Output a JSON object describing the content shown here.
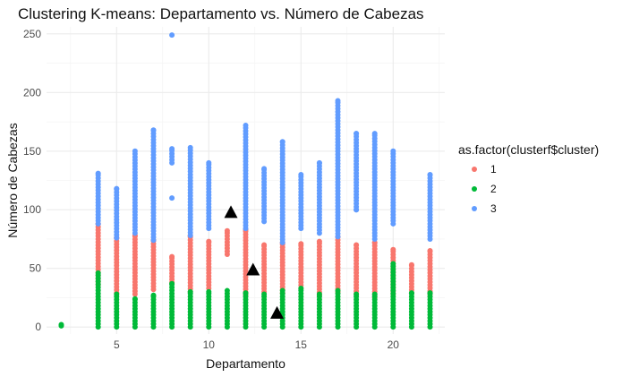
{
  "chart_data": {
    "type": "scatter",
    "title": "Clustering K-means: Departamento vs. Número de Cabezas",
    "xlabel": "Departamento",
    "ylabel": "Número de Cabezas",
    "xlim": [
      1.2,
      22.8
    ],
    "ylim": [
      -6,
      256
    ],
    "x_ticks": [
      5,
      10,
      15,
      20
    ],
    "y_ticks": [
      0,
      50,
      100,
      150,
      200,
      250
    ],
    "grid": true,
    "legend": {
      "title": "as.factor(clusterf$cluster)",
      "position": "right",
      "entries": [
        "1",
        "2",
        "3"
      ]
    },
    "colors": {
      "1": "#F8766D",
      "2": "#00BA38",
      "3": "#619CFF",
      "centroid": "#000000"
    },
    "series": [
      {
        "name": "1",
        "ranges": [
          {
            "x": 4,
            "min": 36,
            "max": 88
          },
          {
            "x": 5,
            "min": 29,
            "max": 76
          },
          {
            "x": 6,
            "min": 28,
            "max": 78
          },
          {
            "x": 7,
            "min": 32,
            "max": 74
          },
          {
            "x": 8,
            "min": 38,
            "max": 60
          },
          {
            "x": 9,
            "min": 30,
            "max": 78
          },
          {
            "x": 10,
            "min": 33,
            "max": 73
          },
          {
            "x": 11,
            "min": 62,
            "max": 82
          },
          {
            "x": 12,
            "min": 27,
            "max": 83
          },
          {
            "x": 13,
            "min": 30,
            "max": 70
          },
          {
            "x": 14,
            "min": 29,
            "max": 72
          },
          {
            "x": 15,
            "min": 33,
            "max": 71
          },
          {
            "x": 16,
            "min": 27,
            "max": 73
          },
          {
            "x": 17,
            "min": 30,
            "max": 77
          },
          {
            "x": 18,
            "min": 28,
            "max": 70
          },
          {
            "x": 19,
            "min": 25,
            "max": 72
          },
          {
            "x": 20,
            "min": 28,
            "max": 66
          },
          {
            "x": 21,
            "min": 29,
            "max": 53
          },
          {
            "x": 22,
            "min": 28,
            "max": 65
          }
        ]
      },
      {
        "name": "2",
        "ranges": [
          {
            "x": 2,
            "min": 1,
            "max": 2
          },
          {
            "x": 4,
            "min": 0,
            "max": 46
          },
          {
            "x": 5,
            "min": 0,
            "max": 28
          },
          {
            "x": 6,
            "min": 0,
            "max": 24
          },
          {
            "x": 7,
            "min": 0,
            "max": 27
          },
          {
            "x": 8,
            "min": 0,
            "max": 37
          },
          {
            "x": 9,
            "min": 0,
            "max": 30
          },
          {
            "x": 10,
            "min": 0,
            "max": 30
          },
          {
            "x": 11,
            "min": 0,
            "max": 31
          },
          {
            "x": 12,
            "min": 0,
            "max": 29
          },
          {
            "x": 13,
            "min": 0,
            "max": 28
          },
          {
            "x": 14,
            "min": 0,
            "max": 31
          },
          {
            "x": 15,
            "min": 0,
            "max": 33
          },
          {
            "x": 16,
            "min": 0,
            "max": 28
          },
          {
            "x": 17,
            "min": 0,
            "max": 31
          },
          {
            "x": 18,
            "min": 0,
            "max": 28
          },
          {
            "x": 19,
            "min": 0,
            "max": 28
          },
          {
            "x": 20,
            "min": 0,
            "max": 54
          },
          {
            "x": 21,
            "min": 0,
            "max": 29
          },
          {
            "x": 22,
            "min": 0,
            "max": 29
          }
        ]
      },
      {
        "name": "3",
        "ranges": [
          {
            "x": 4,
            "min": 88,
            "max": 131
          },
          {
            "x": 5,
            "min": 76,
            "max": 118
          },
          {
            "x": 6,
            "min": 80,
            "max": 150
          },
          {
            "x": 7,
            "min": 74,
            "max": 168
          },
          {
            "x": 8,
            "min": 140,
            "max": 152
          },
          {
            "x": 9,
            "min": 78,
            "max": 153
          },
          {
            "x": 10,
            "min": 84,
            "max": 140
          },
          {
            "x": 12,
            "min": 84,
            "max": 172
          },
          {
            "x": 13,
            "min": 90,
            "max": 135
          },
          {
            "x": 14,
            "min": 72,
            "max": 158
          },
          {
            "x": 15,
            "min": 84,
            "max": 130
          },
          {
            "x": 16,
            "min": 80,
            "max": 140
          },
          {
            "x": 17,
            "min": 77,
            "max": 193
          },
          {
            "x": 18,
            "min": 100,
            "max": 165
          },
          {
            "x": 19,
            "min": 75,
            "max": 165
          },
          {
            "x": 20,
            "min": 88,
            "max": 150
          },
          {
            "x": 22,
            "min": 75,
            "max": 130
          }
        ],
        "points": [
          {
            "x": 8,
            "y": 249
          },
          {
            "x": 8,
            "y": 110
          },
          {
            "x": 18,
            "y": 100
          }
        ]
      }
    ],
    "centroids": [
      {
        "x": 11.2,
        "y": 98
      },
      {
        "x": 12.4,
        "y": 49
      },
      {
        "x": 13.7,
        "y": 12
      }
    ]
  }
}
